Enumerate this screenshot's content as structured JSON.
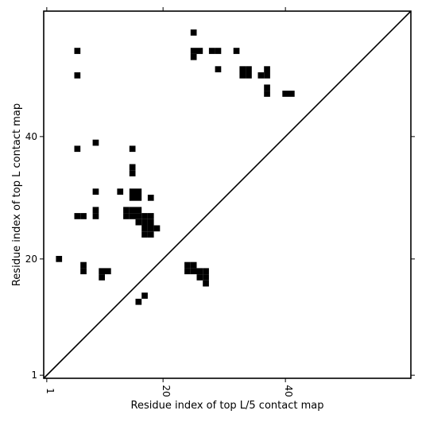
{
  "chart_data": {
    "type": "heatmap",
    "title": "",
    "xlabel": "Residue index of top L/5 contact map",
    "ylabel": "Residue index of top L contact map",
    "xlim": [
      0.5,
      60.5
    ],
    "ylim": [
      0.5,
      60.5
    ],
    "xticks": [
      1,
      20,
      40
    ],
    "yticks": [
      1,
      20,
      40
    ],
    "diagonal": true,
    "cell_color": "#000000",
    "background": "#ffffff",
    "upper_triangle_contacts": [
      [
        25,
        57
      ],
      [
        6,
        54
      ],
      [
        25,
        54
      ],
      [
        26,
        54
      ],
      [
        28,
        54
      ],
      [
        29,
        54
      ],
      [
        32,
        54
      ],
      [
        25,
        53
      ],
      [
        29,
        51
      ],
      [
        33,
        51
      ],
      [
        34,
        51
      ],
      [
        37,
        51
      ],
      [
        33,
        50
      ],
      [
        34,
        50
      ],
      [
        36,
        50
      ],
      [
        37,
        50
      ],
      [
        6,
        50
      ],
      [
        37,
        48
      ],
      [
        37,
        47
      ],
      [
        40,
        47
      ],
      [
        41,
        47
      ],
      [
        9,
        39
      ],
      [
        6,
        38
      ],
      [
        15,
        38
      ],
      [
        15,
        35
      ],
      [
        15,
        34
      ],
      [
        9,
        31
      ],
      [
        13,
        31
      ],
      [
        15,
        31
      ],
      [
        16,
        31
      ],
      [
        15,
        30
      ],
      [
        16,
        30
      ],
      [
        18,
        30
      ],
      [
        9,
        28
      ],
      [
        14,
        28
      ],
      [
        15,
        28
      ],
      [
        16,
        28
      ],
      [
        6,
        27
      ],
      [
        7,
        27
      ],
      [
        9,
        27
      ],
      [
        14,
        27
      ],
      [
        15,
        27
      ],
      [
        16,
        27
      ],
      [
        17,
        27
      ],
      [
        18,
        27
      ],
      [
        16,
        26
      ],
      [
        17,
        26
      ],
      [
        18,
        26
      ],
      [
        17,
        25
      ],
      [
        18,
        25
      ],
      [
        19,
        25
      ],
      [
        17,
        24
      ],
      [
        18,
        24
      ],
      [
        3,
        20
      ]
    ],
    "lower_triangle_contacts": [
      [
        7,
        19
      ],
      [
        24,
        19
      ],
      [
        25,
        19
      ],
      [
        7,
        18
      ],
      [
        10,
        18
      ],
      [
        11,
        18
      ],
      [
        24,
        18
      ],
      [
        25,
        18
      ],
      [
        26,
        18
      ],
      [
        27,
        18
      ],
      [
        10,
        17
      ],
      [
        26,
        17
      ],
      [
        27,
        17
      ],
      [
        27,
        16
      ],
      [
        17,
        14
      ],
      [
        16,
        13
      ]
    ]
  }
}
